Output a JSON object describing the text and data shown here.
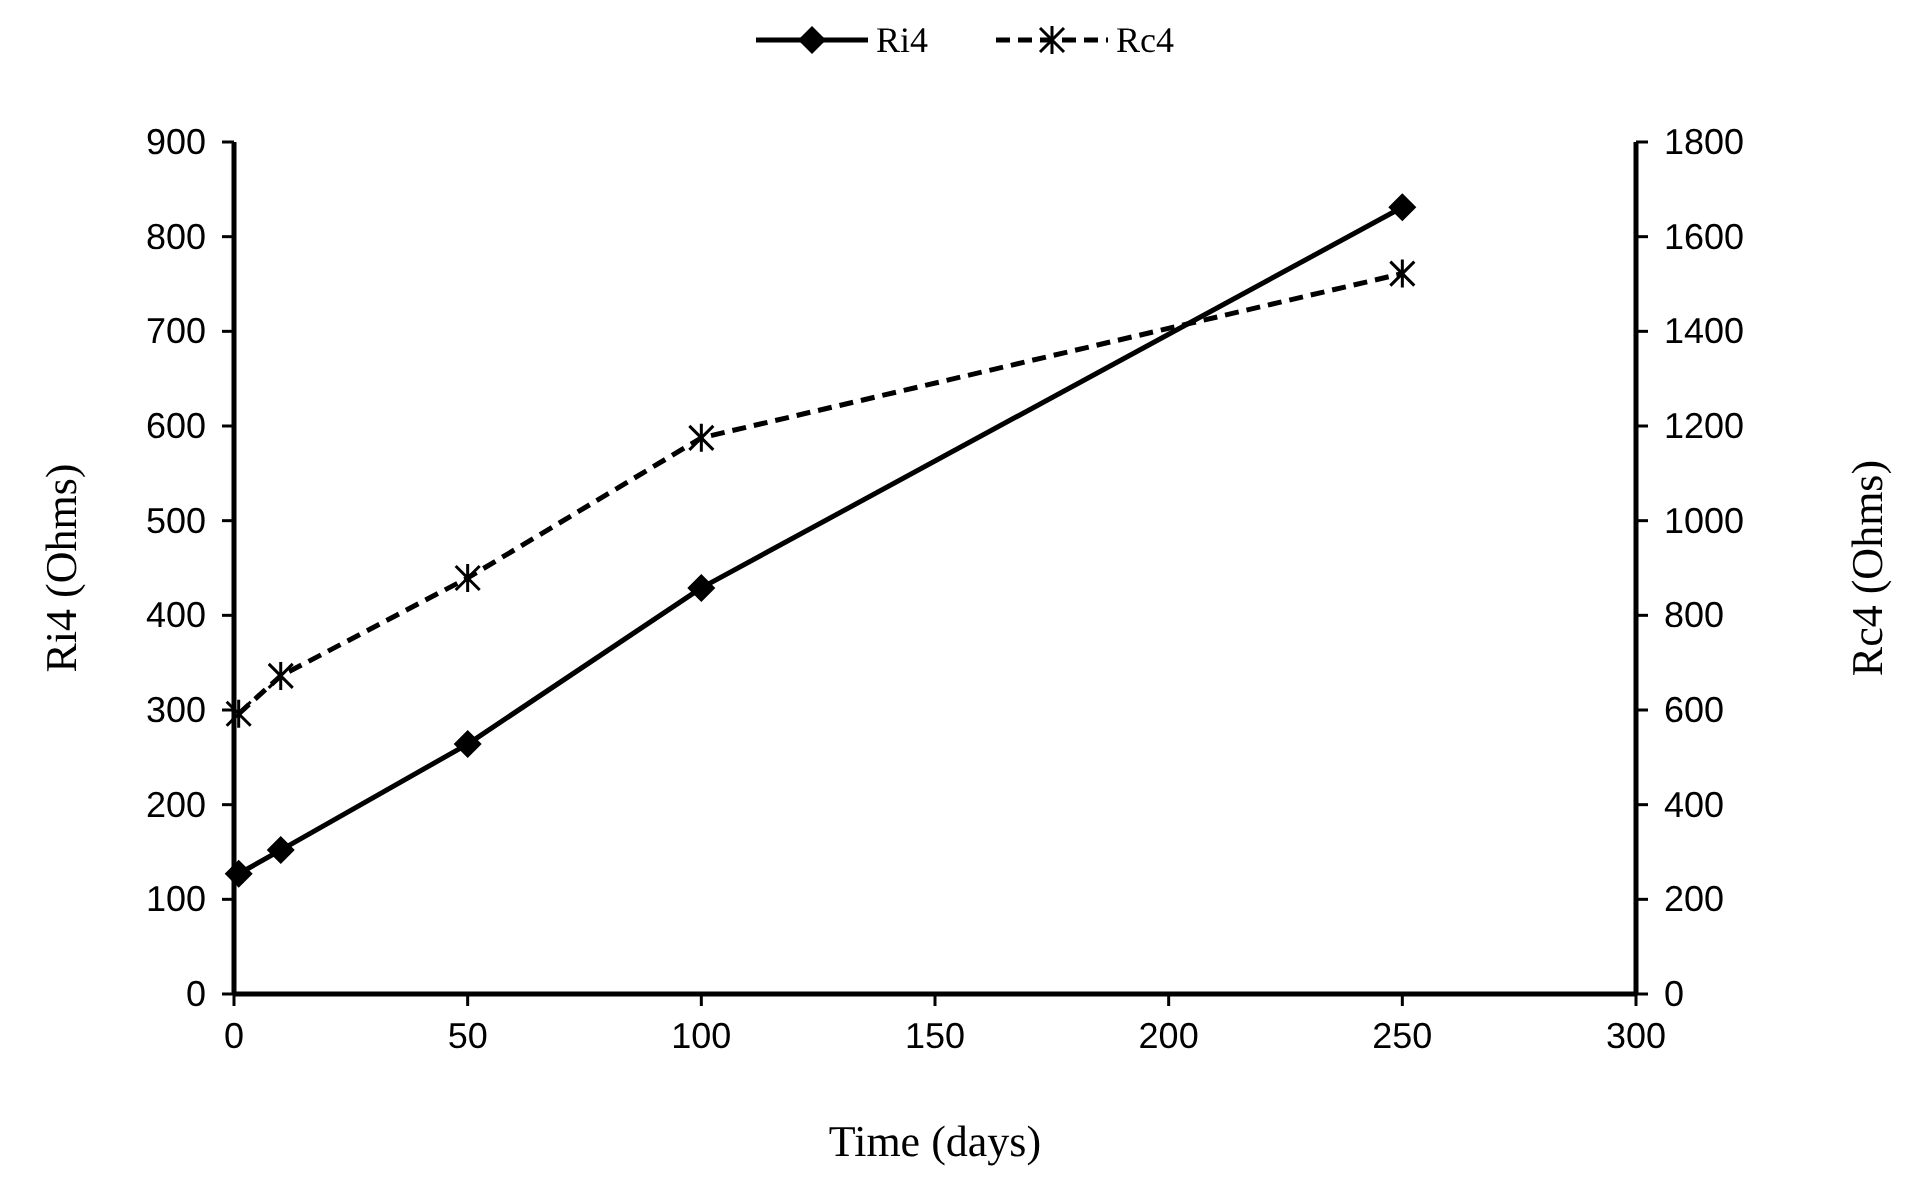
{
  "chart_data": {
    "type": "line",
    "xlabel": "Time (days)",
    "ylabel": "Ri4 (Ohms)",
    "y2label": "Rc4 (Ohms)",
    "legend": "top",
    "grid": false,
    "xlim": [
      0,
      300
    ],
    "xticks": [
      0,
      50,
      100,
      150,
      200,
      250,
      300
    ],
    "ylim": [
      0,
      900
    ],
    "yticks": [
      0,
      100,
      200,
      300,
      400,
      500,
      600,
      700,
      800,
      900
    ],
    "y2lim": [
      0,
      1800
    ],
    "y2ticks": [
      0,
      200,
      400,
      600,
      800,
      1000,
      1200,
      1400,
      1600,
      1800
    ],
    "series": [
      {
        "name": "Ri4",
        "color": "#000000",
        "x": [
          1,
          10,
          50,
          100,
          250
        ],
        "values": [
          127,
          152,
          264,
          429,
          831
        ],
        "marker": "diamond",
        "line_style": "solid"
      },
      {
        "name": "Rc4",
        "color": "#000000",
        "x": [
          1,
          10,
          50,
          100,
          250
        ],
        "values": [
          592,
          672,
          879,
          1175,
          1522
        ],
        "marker": "cross",
        "line_style": "dashed",
        "axis": "y2"
      }
    ]
  }
}
